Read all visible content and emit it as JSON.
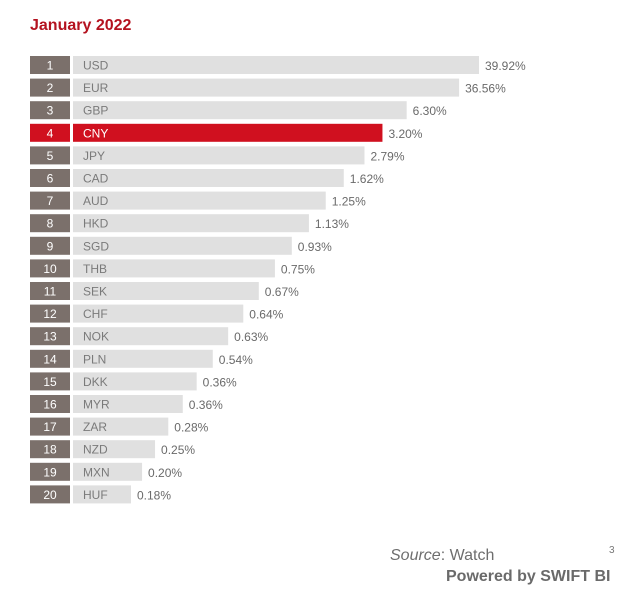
{
  "colors": {
    "title": "#b4121f",
    "rank_box": "#7b706b",
    "bar": "#e0e0e0",
    "highlight": "#d0101f",
    "value_text": "#6a6a6a"
  },
  "chart_data": {
    "type": "bar",
    "orientation": "horizontal",
    "title": "January 2022",
    "highlight_category": "CNY",
    "ranks": [
      "1",
      "2",
      "3",
      "4",
      "5",
      "6",
      "7",
      "8",
      "9",
      "10",
      "11",
      "12",
      "13",
      "14",
      "15",
      "16",
      "17",
      "18",
      "19",
      "20"
    ],
    "categories": [
      "USD",
      "EUR",
      "GBP",
      "CNY",
      "JPY",
      "CAD",
      "AUD",
      "HKD",
      "SGD",
      "THB",
      "SEK",
      "CHF",
      "NOK",
      "PLN",
      "DKK",
      "MYR",
      "ZAR",
      "NZD",
      "MXN",
      "HUF"
    ],
    "values": [
      39.92,
      36.56,
      6.3,
      3.2,
      2.79,
      1.62,
      1.25,
      1.13,
      0.93,
      0.75,
      0.67,
      0.64,
      0.63,
      0.54,
      0.36,
      0.36,
      0.28,
      0.25,
      0.2,
      0.18
    ],
    "value_labels": [
      "39.92%",
      "36.56%",
      "6.30%",
      "3.20%",
      "2.79%",
      "1.62%",
      "1.25%",
      "1.13%",
      "0.93%",
      "0.75%",
      "0.67%",
      "0.64%",
      "0.63%",
      "0.54%",
      "0.36%",
      "0.36%",
      "0.28%",
      "0.25%",
      "0.20%",
      "0.18%"
    ],
    "axis_scale": "non-linear (bars sorted by rank; lengths not proportional)"
  },
  "footer": {
    "source_label": "Source",
    "source_value": ": Watch",
    "page_number": "3",
    "powered_by": "Powered by SWIFT BI"
  }
}
